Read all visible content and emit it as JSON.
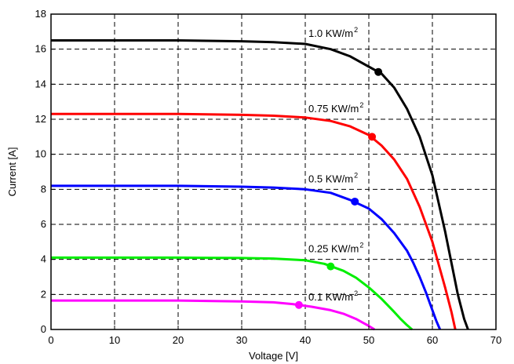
{
  "chart_data": {
    "type": "line",
    "title": "",
    "xlabel": "Voltage [V]",
    "ylabel": "Current [A]",
    "xlim": [
      0,
      70
    ],
    "ylim": [
      0,
      18
    ],
    "xticks": [
      0,
      10,
      20,
      30,
      40,
      50,
      60,
      70
    ],
    "yticks": [
      0,
      2,
      4,
      6,
      8,
      10,
      12,
      14,
      16,
      18
    ],
    "grid": true,
    "grid_style": "dashed",
    "legend": "none",
    "series": [
      {
        "name": "1.0 KW/m²",
        "label_text": "1.0 KW/m",
        "label_sup": "2",
        "label_at": [
          40.5,
          16.7
        ],
        "color": "#000000",
        "x": [
          0,
          10,
          20,
          30,
          35,
          40,
          44,
          47,
          50,
          52,
          54,
          56,
          58,
          60,
          62,
          63,
          64,
          65,
          65.6
        ],
        "y": [
          16.5,
          16.5,
          16.5,
          16.45,
          16.4,
          16.3,
          16.0,
          15.6,
          15.0,
          14.6,
          13.8,
          12.6,
          11.0,
          8.8,
          5.6,
          3.8,
          2.0,
          0.6,
          0
        ],
        "mpp": [
          51.5,
          14.7
        ]
      },
      {
        "name": "0.75 KW/m²",
        "label_text": "0.75 KW/m",
        "label_sup": "2",
        "label_at": [
          40.5,
          12.4
        ],
        "color": "#ff0000",
        "x": [
          0,
          10,
          20,
          30,
          35,
          40,
          44,
          47,
          50,
          52,
          54,
          56,
          58,
          60,
          61,
          62,
          63,
          63.6
        ],
        "y": [
          12.3,
          12.3,
          12.3,
          12.25,
          12.2,
          12.1,
          11.9,
          11.6,
          11.1,
          10.5,
          9.7,
          8.6,
          7.0,
          5.0,
          3.7,
          2.4,
          1.0,
          0
        ],
        "mpp": [
          50.5,
          11.0
        ]
      },
      {
        "name": "0.5 KW/m²",
        "label_text": "0.5  KW/m",
        "label_sup": "2",
        "label_at": [
          40.5,
          8.4
        ],
        "color": "#0000ff",
        "x": [
          0,
          10,
          20,
          30,
          35,
          40,
          44,
          47,
          50,
          52,
          54,
          56,
          57,
          58,
          59,
          60,
          60.6,
          61.2
        ],
        "y": [
          8.2,
          8.2,
          8.2,
          8.15,
          8.1,
          8.0,
          7.8,
          7.4,
          6.9,
          6.3,
          5.5,
          4.5,
          3.8,
          3.0,
          2.1,
          1.1,
          0.5,
          0
        ],
        "mpp": [
          47.8,
          7.3
        ]
      },
      {
        "name": "0.25 KW/m²",
        "label_text": "0.25 KW/m",
        "label_sup": "2",
        "label_at": [
          40.5,
          4.4
        ],
        "color": "#00ee00",
        "x": [
          0,
          10,
          20,
          30,
          35,
          40,
          43,
          46,
          48,
          50,
          52,
          54,
          55,
          56,
          56.8
        ],
        "y": [
          4.1,
          4.1,
          4.1,
          4.08,
          4.05,
          3.95,
          3.75,
          3.35,
          2.95,
          2.4,
          1.75,
          1.0,
          0.6,
          0.25,
          0
        ],
        "mpp": [
          44.0,
          3.6
        ]
      },
      {
        "name": "0.1 KW/m²",
        "label_text": "0.1  KW/m",
        "label_sup": "2",
        "label_at": [
          40.5,
          1.65
        ],
        "color": "#ff00ff",
        "x": [
          0,
          10,
          20,
          30,
          35,
          38,
          41,
          44,
          46,
          48,
          49,
          50,
          50.9
        ],
        "y": [
          1.65,
          1.65,
          1.65,
          1.6,
          1.55,
          1.45,
          1.3,
          1.1,
          0.9,
          0.6,
          0.4,
          0.2,
          0
        ],
        "mpp": [
          39.0,
          1.4
        ]
      }
    ]
  }
}
